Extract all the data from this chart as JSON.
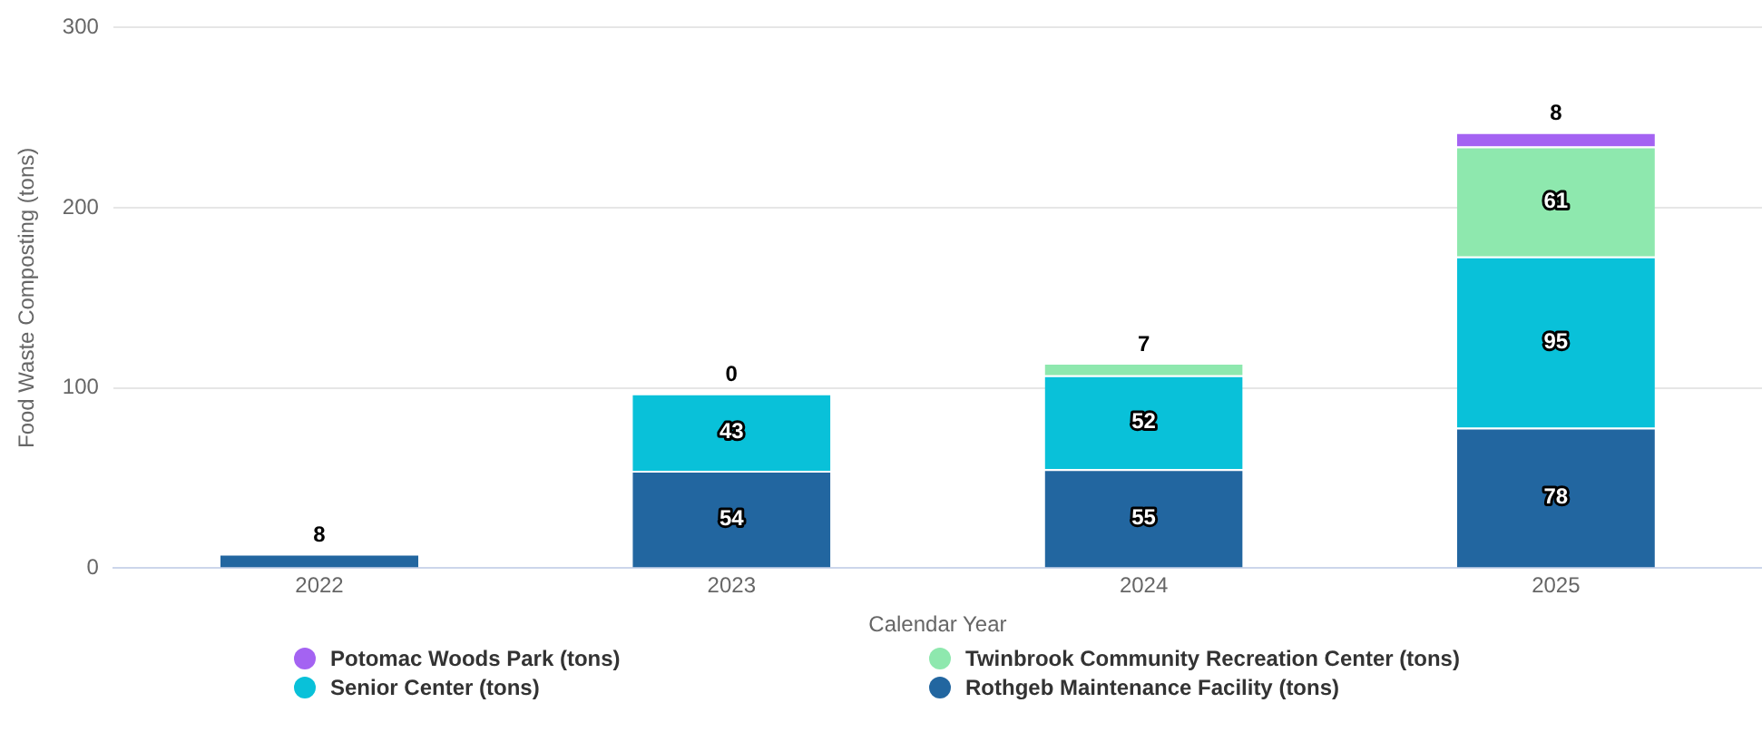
{
  "chart_data": {
    "type": "bar",
    "xlabel": "Calendar Year",
    "ylabel": "Food Waste Composting (tons)",
    "categories": [
      "2022",
      "2023",
      "2024",
      "2025"
    ],
    "stacked": true,
    "ylim": [
      0,
      300
    ],
    "yticks": [
      0,
      100,
      200,
      300
    ],
    "grid": "y",
    "legend": "bottom",
    "data_labels": true,
    "series": [
      {
        "name": "Rothgeb Maintenance Facility (tons)",
        "color": "#2266a0",
        "values": [
          8,
          54,
          55,
          78
        ]
      },
      {
        "name": "Senior Center (tons)",
        "color": "#09c1d9",
        "values": [
          null,
          43,
          52,
          95
        ]
      },
      {
        "name": "Twinbrook Community Recreation Center (tons)",
        "color": "#8ee8ae",
        "values": [
          null,
          0,
          7,
          61
        ]
      },
      {
        "name": "Potomac Woods Park (tons)",
        "color": "#a463f2",
        "values": [
          null,
          null,
          null,
          8
        ]
      }
    ]
  }
}
